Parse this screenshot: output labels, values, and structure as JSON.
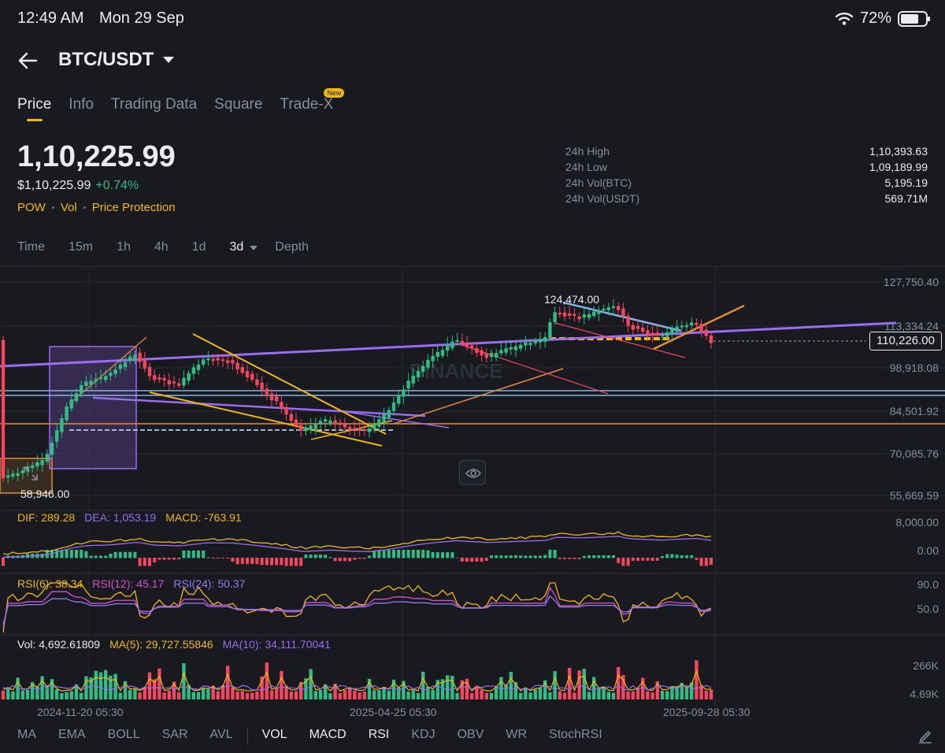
{
  "status_bar": {
    "time": "12:49 AM",
    "date": "Mon 29 Sep",
    "battery": "72%",
    "battery_level": 0.72
  },
  "header": {
    "pair": "BTC/USDT"
  },
  "tabs": [
    {
      "label": "Price",
      "active": true
    },
    {
      "label": "Info"
    },
    {
      "label": "Trading Data"
    },
    {
      "label": "Square"
    },
    {
      "label": "Trade-X",
      "badge": "New"
    }
  ],
  "ticker": {
    "last_price": "1,10,225.99",
    "usd_price": "$1,10,225.99",
    "change": "+0.74%",
    "tags": [
      "POW",
      "Vol",
      "Price Protection"
    ]
  },
  "stats": [
    {
      "label": "24h High",
      "value": "1,10,393.63"
    },
    {
      "label": "24h Low",
      "value": "1,09,189.99"
    },
    {
      "label": "24h Vol(BTC)",
      "value": "5,195.19"
    },
    {
      "label": "24h Vol(USDT)",
      "value": "569.71M"
    }
  ],
  "intervals": {
    "items": [
      "Time",
      "15m",
      "1h",
      "4h",
      "1d"
    ],
    "selected": "3d",
    "depth": "Depth"
  },
  "chart": {
    "price_axis": [
      "127,750.40",
      "113,334.24",
      "98,918.08",
      "84,501.92",
      "70,085.76",
      "55,669.59"
    ],
    "current_price_tag": "110,226.00",
    "high_label": "124,474.00",
    "low_label": "58,946.00",
    "watermark": "BINANCE",
    "date_axis": [
      "2024-11-20 05:30",
      "2025-04-25 05:30",
      "2025-09-28 05:30"
    ]
  },
  "macd": {
    "dif": "DIF: 289.28",
    "dea": "DEA: 1,053.19",
    "macd": "MACD: -763.91",
    "axis": [
      "8,000.00",
      "0.00"
    ]
  },
  "rsi": {
    "rsi6": "RSI(6): 38.34",
    "rsi12": "RSI(12): 45.17",
    "rsi24": "RSI(24): 50.37",
    "axis": [
      "90.0",
      "50.0"
    ]
  },
  "volume": {
    "vol": "Vol: 4,692.61809",
    "ma5": "MA(5): 29,727.55846",
    "ma10": "MA(10): 34,111.70041",
    "axis": [
      "266K",
      "4.69K"
    ]
  },
  "indicator_bar": {
    "main": [
      "MA",
      "EMA",
      "BOLL",
      "SAR",
      "AVL"
    ],
    "sub": [
      "VOL",
      "MACD",
      "RSI",
      "KDJ",
      "OBV",
      "WR",
      "StochRSI"
    ],
    "sub_active": [
      "VOL",
      "MACD",
      "RSI"
    ]
  },
  "colors": {
    "up": "#2ebd85",
    "down": "#f6465d",
    "accent": "#f0b90b",
    "purple": "#9b6bf2"
  }
}
